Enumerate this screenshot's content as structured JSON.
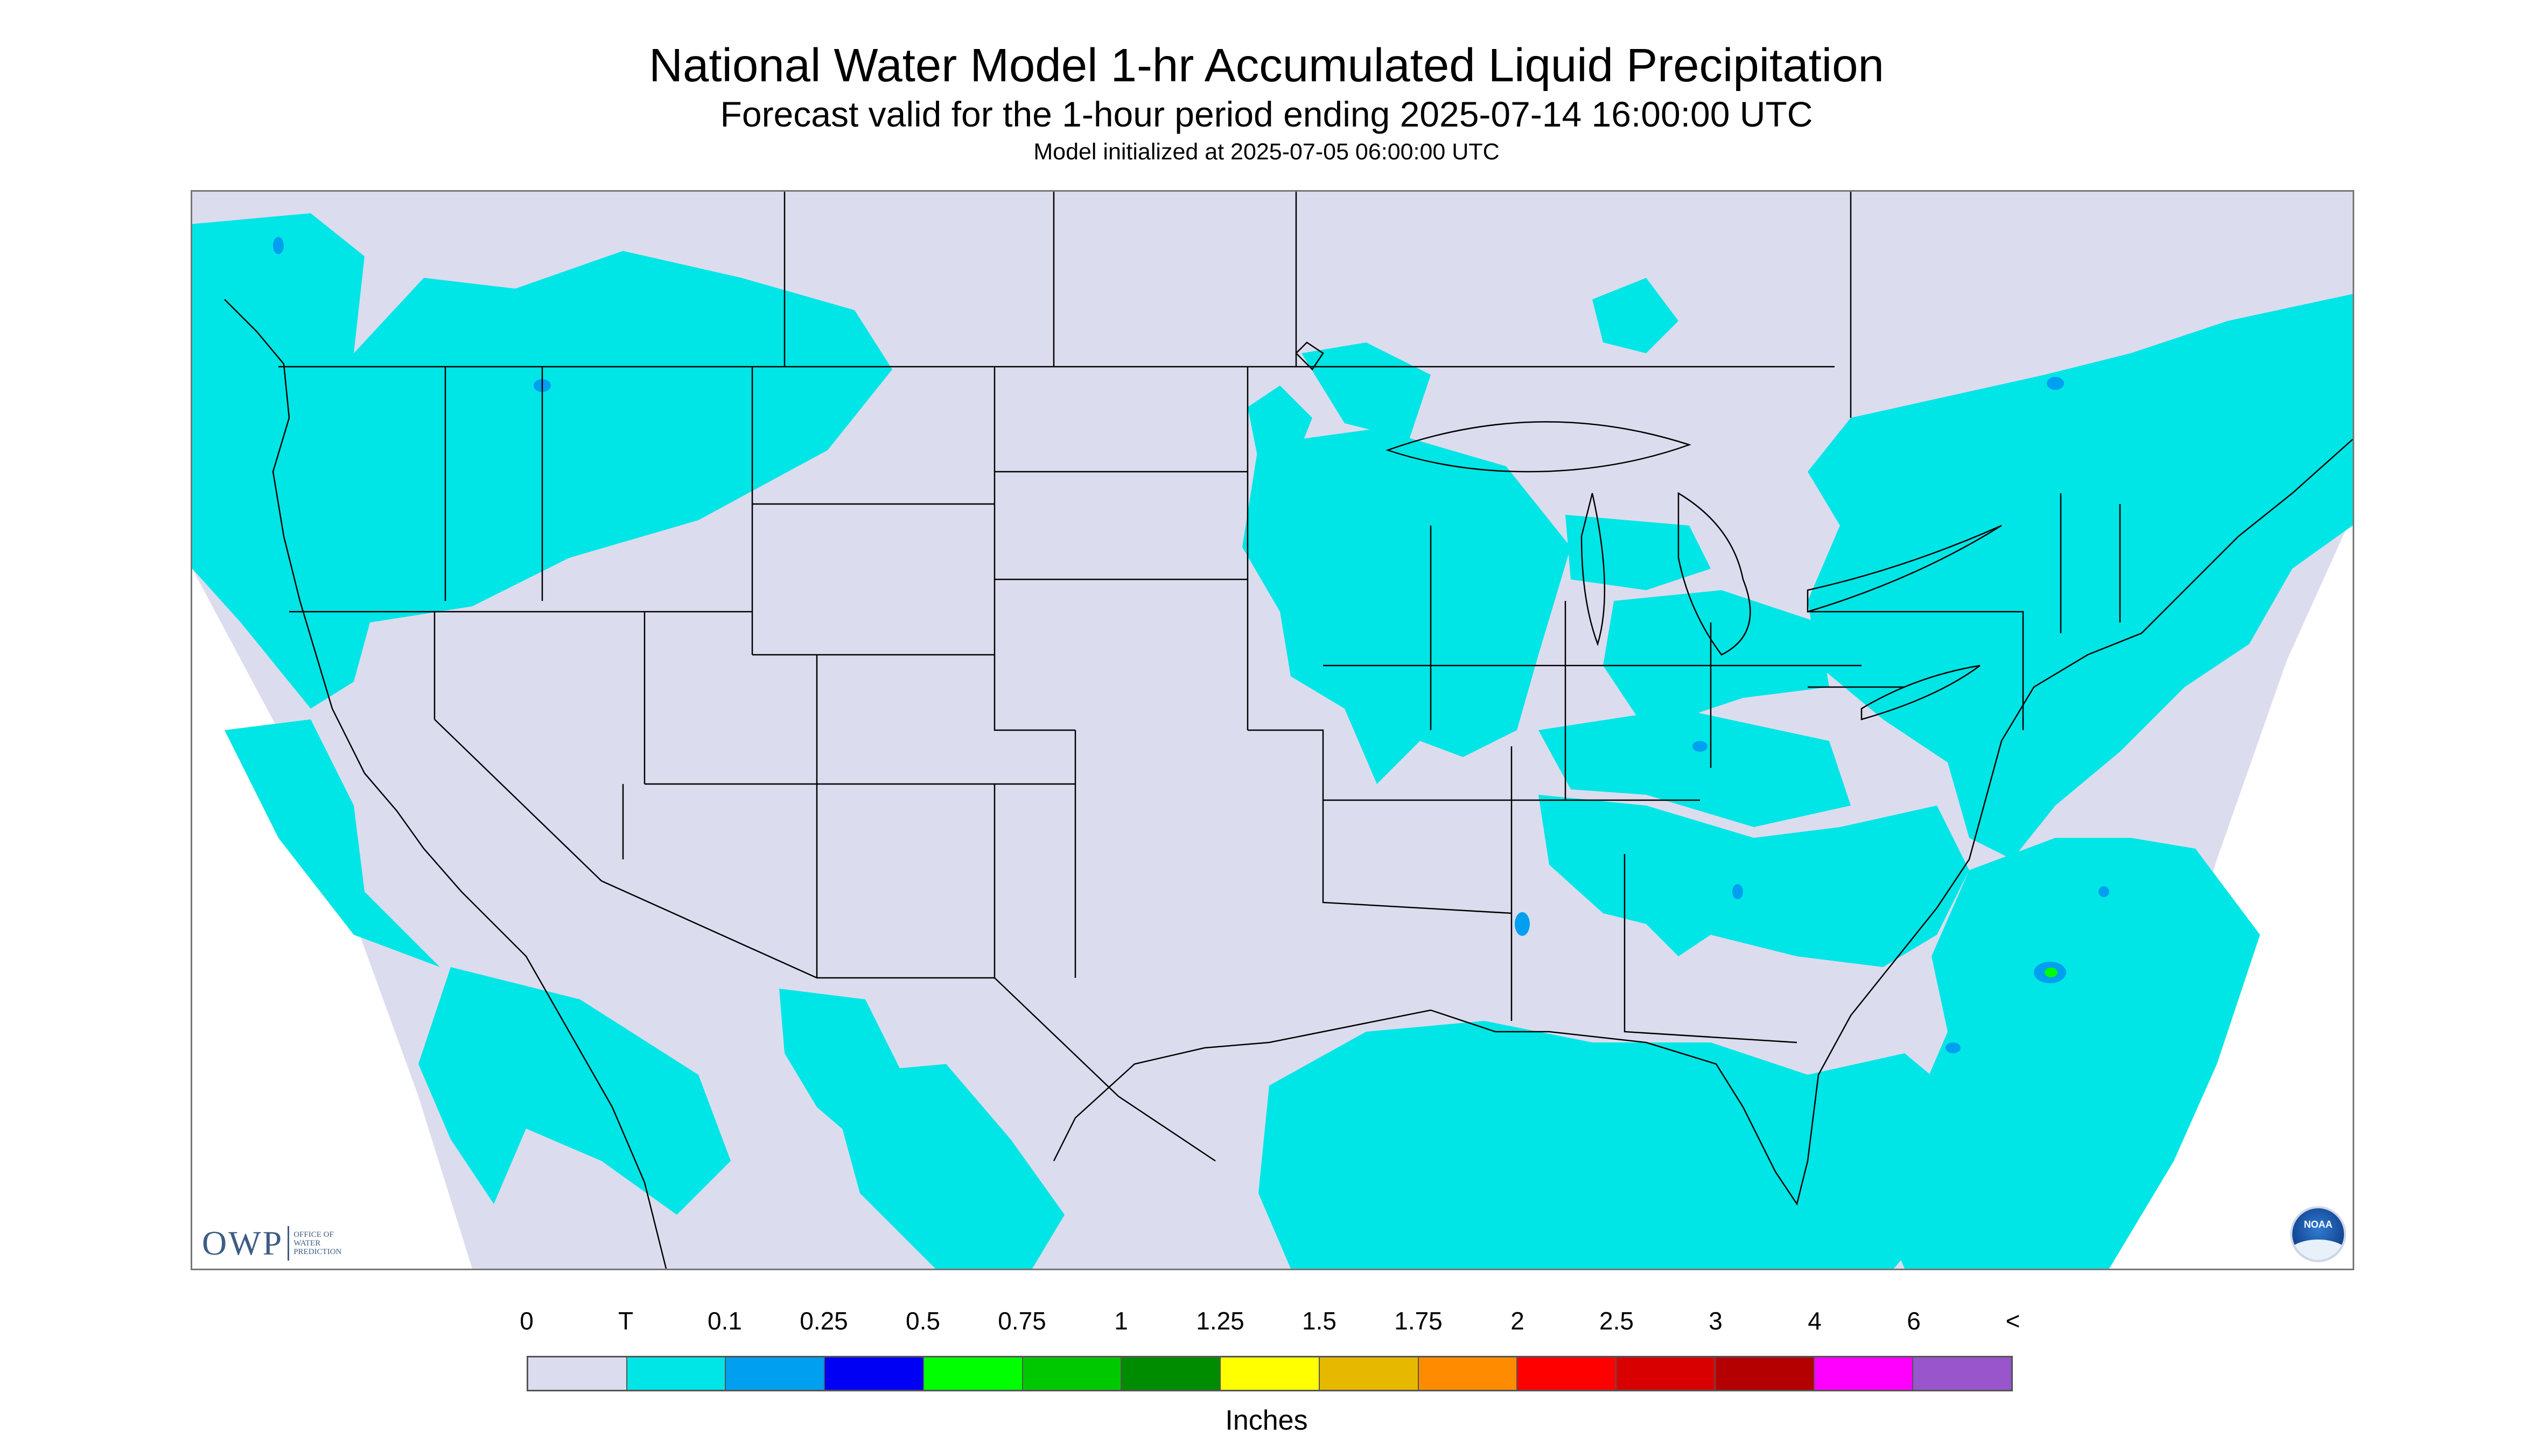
{
  "header": {
    "title": "National Water Model 1-hr Accumulated Liquid Precipitation",
    "subtitle": "Forecast valid for the 1-hour period ending 2025-07-14 16:00:00 UTC",
    "init_line": "Model initialized at 2025-07-05 06:00:00 UTC"
  },
  "logos": {
    "owp_mark": "OWP",
    "owp_text_1": "OFFICE OF",
    "owp_text_2": "WATER",
    "owp_text_3": "PREDICTION",
    "noaa": "NOAA"
  },
  "legend": {
    "labels": [
      "0",
      "T",
      "0.1",
      "0.25",
      "0.5",
      "0.75",
      "1",
      "1.25",
      "1.5",
      "1.75",
      "2",
      "2.5",
      "3",
      "4",
      "6",
      "<"
    ],
    "colors": [
      "#dcdcef",
      "#00e5e5",
      "#009ff0",
      "#0000f5",
      "#00ff00",
      "#00c800",
      "#008c00",
      "#ffff00",
      "#e6b800",
      "#ff8c00",
      "#ff0000",
      "#d80000",
      "#b40000",
      "#ff00ff",
      "#9955cc"
    ],
    "units": "Inches"
  },
  "map_colors": {
    "background": "#dcdcef",
    "trace": "#00e5e5",
    "light": "#009ff0",
    "green": "#00ff00",
    "border": "#000000"
  }
}
